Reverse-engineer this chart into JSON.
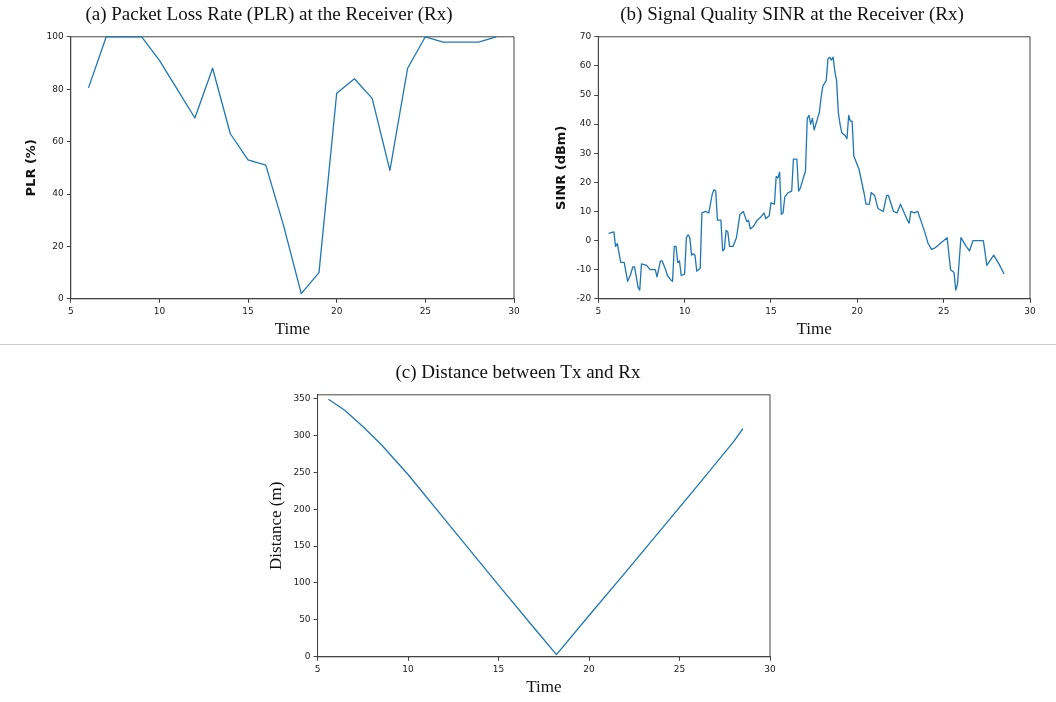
{
  "chart_data": [
    {
      "type": "line",
      "title": "(a) Packet Loss Rate (PLR) at the Receiver (Rx)",
      "xlabel": "Time",
      "ylabel": "PLR (%)",
      "xlim": [
        5,
        30
      ],
      "xticks": [
        5,
        10,
        15,
        20,
        25,
        30
      ],
      "ylim": [
        0,
        100
      ],
      "yticks": [
        0,
        20,
        40,
        60,
        80,
        100
      ],
      "grid": false,
      "legend": false,
      "marker": "none",
      "line_style": "solid",
      "series": [
        {
          "color": "#1f77b4",
          "x": [
            6,
            7,
            8,
            9,
            10,
            11,
            12,
            13,
            14,
            15,
            16,
            17,
            18,
            19,
            20,
            21,
            22,
            23,
            24,
            25,
            26,
            27,
            28,
            29
          ],
          "values": [
            80.5,
            100,
            100,
            100,
            91,
            80,
            69,
            88,
            63,
            53,
            51,
            28,
            2,
            10,
            78.5,
            84,
            76.5,
            49,
            88,
            100,
            98,
            98,
            98,
            100
          ]
        }
      ]
    },
    {
      "type": "line",
      "title": "(b) Signal Quality SINR at the Receiver (Rx)",
      "xlabel": "Time",
      "ylabel": "SINR (dBm)",
      "xlim": [
        5,
        30
      ],
      "xticks": [
        5,
        10,
        15,
        20,
        25,
        30
      ],
      "ylim": [
        -20,
        70
      ],
      "yticks": [
        -20,
        -10,
        0,
        10,
        20,
        30,
        40,
        50,
        60,
        70
      ],
      "grid": false,
      "legend": false,
      "marker": "none",
      "line_style": "solid",
      "series": [
        {
          "color": "#1f77b4",
          "x": [
            5.6,
            5.9,
            6.0,
            6.1,
            6.3,
            6.5,
            6.7,
            6.85,
            7.0,
            7.1,
            7.3,
            7.4,
            7.5,
            7.8,
            8.0,
            8.3,
            8.4,
            8.6,
            8.7,
            8.9,
            9.0,
            9.2,
            9.3,
            9.4,
            9.5,
            9.6,
            9.7,
            9.8,
            10.0,
            10.1,
            10.2,
            10.3,
            10.4,
            10.5,
            10.6,
            10.7,
            10.9,
            11.0,
            11.2,
            11.4,
            11.6,
            11.7,
            11.8,
            11.9,
            12.1,
            12.2,
            12.3,
            12.4,
            12.5,
            12.6,
            12.8,
            13.0,
            13.2,
            13.4,
            13.6,
            13.7,
            13.8,
            14.0,
            14.2,
            14.4,
            14.6,
            14.7,
            14.9,
            15.0,
            15.2,
            15.3,
            15.4,
            15.5,
            15.6,
            15.7,
            15.8,
            16.0,
            16.2,
            16.3,
            16.5,
            16.6,
            16.7,
            16.9,
            17.0,
            17.1,
            17.2,
            17.3,
            17.4,
            17.5,
            17.6,
            17.8,
            17.9,
            18.0,
            18.1,
            18.2,
            18.3,
            18.4,
            18.5,
            18.6,
            18.7,
            18.8,
            18.9,
            19.0,
            19.1,
            19.3,
            19.4,
            19.5,
            19.6,
            19.7,
            19.8,
            20.0,
            20.1,
            20.4,
            20.5,
            20.7,
            20.8,
            21.0,
            21.2,
            21.5,
            21.7,
            21.8,
            22.1,
            22.3,
            22.5,
            22.9,
            23.0,
            23.1,
            23.3,
            23.5,
            23.7,
            23.9,
            24.1,
            24.3,
            24.5,
            24.6,
            24.8,
            25.2,
            25.4,
            25.6,
            25.7,
            25.8,
            26.0,
            26.3,
            26.5,
            26.7,
            27.3,
            27.5,
            27.9,
            28.2,
            28.5
          ],
          "values": [
            2.5,
            3,
            -2,
            -1,
            -7.5,
            -7.5,
            -14,
            -12,
            -9,
            -9,
            -16,
            -17,
            -8,
            -8.5,
            -10,
            -10,
            -12.5,
            -7,
            -7,
            -10,
            -12,
            -13.5,
            -14,
            -2,
            -2,
            -7.5,
            -7,
            -12,
            -11.5,
            1,
            2,
            1,
            -5,
            -4.5,
            -5,
            -10.5,
            -9.5,
            9.5,
            10,
            9.5,
            16,
            17.5,
            17,
            7,
            7,
            -3.5,
            -3,
            3.5,
            3,
            -2,
            -2,
            1,
            9,
            10,
            6.5,
            7,
            4,
            5,
            7,
            8,
            9.5,
            7.5,
            8.5,
            13,
            12.5,
            22,
            21.5,
            23.5,
            9,
            9.5,
            15,
            16.5,
            17,
            28,
            28,
            17,
            18,
            22,
            24,
            42,
            43,
            40,
            42,
            38,
            40,
            44,
            49,
            53,
            54,
            55,
            62.5,
            63,
            62,
            63,
            58,
            55,
            44,
            40,
            37,
            36,
            35,
            43,
            41,
            41,
            29,
            26,
            24.5,
            16,
            12.5,
            12.5,
            16.5,
            15.5,
            11,
            10,
            15.5,
            15.5,
            10,
            9.5,
            12.5,
            7,
            6,
            10,
            9.5,
            10,
            6.5,
            3,
            -1,
            -3,
            -2.5,
            -2,
            -1,
            1,
            -10,
            -11,
            -17,
            -15,
            1,
            -2,
            -3.5,
            0,
            0,
            -8.5,
            -5,
            -8,
            -11.5
          ]
        }
      ]
    },
    {
      "type": "line",
      "title": "(c) Distance between Tx and Rx",
      "xlabel": "Time",
      "ylabel": "Distance (m)",
      "xlim": [
        5,
        30
      ],
      "xticks": [
        5,
        10,
        15,
        20,
        25,
        30
      ],
      "ylim": [
        0,
        355
      ],
      "yticks": [
        0,
        50,
        100,
        150,
        200,
        250,
        300,
        350
      ],
      "grid": false,
      "legend": false,
      "marker": "none",
      "line_style": "solid",
      "series": [
        {
          "color": "#1f77b4",
          "x": [
            5.6,
            6.5,
            7.5,
            8.5,
            10,
            12.5,
            15,
            17,
            18.2,
            20,
            22,
            24,
            26,
            28,
            28.5
          ],
          "values": [
            349,
            334,
            312,
            288,
            247,
            172,
            97,
            38,
            3,
            56,
            114,
            173,
            232,
            292,
            309
          ]
        }
      ]
    }
  ]
}
